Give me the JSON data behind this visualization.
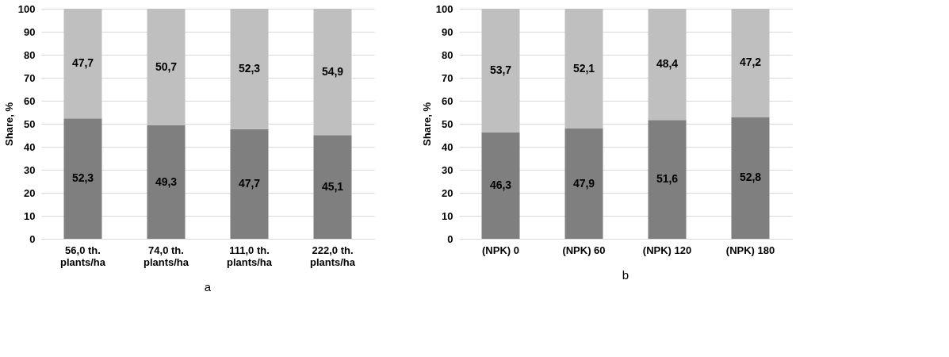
{
  "chart_data": [
    {
      "type": "bar",
      "stacked": true,
      "ylabel": "Share, %",
      "categories": [
        "56,0 th.\nplants/ha",
        "74,0 th.\nplants/ha",
        "111,0 th.\nplants/ha",
        "222,0 th.\nplants/ha"
      ],
      "ylim": [
        0,
        100
      ],
      "yticks": [
        0,
        10,
        20,
        30,
        40,
        50,
        60,
        70,
        80,
        90,
        100
      ],
      "grid": "y",
      "legend": false,
      "annotations": [
        "a"
      ],
      "series": [
        {
          "color": "#7f7f7f",
          "values": [
            52.3,
            49.3,
            47.7,
            45.1
          ],
          "value_labels": [
            "52,3",
            "49,3",
            "47,7",
            "45,1"
          ]
        },
        {
          "color": "#bfbfbf",
          "values": [
            47.7,
            50.7,
            52.3,
            54.9
          ],
          "value_labels": [
            "47,7",
            "50,7",
            "52,3",
            "54,9"
          ]
        }
      ]
    },
    {
      "type": "bar",
      "stacked": true,
      "ylabel": "Share, %",
      "categories": [
        "(NPK) 0",
        "(NPK) 60",
        "(NPK) 120",
        "(NPK) 180"
      ],
      "ylim": [
        0,
        100
      ],
      "yticks": [
        0,
        10,
        20,
        30,
        40,
        50,
        60,
        70,
        80,
        90,
        100
      ],
      "grid": "y",
      "legend": false,
      "annotations": [
        "b"
      ],
      "series": [
        {
          "color": "#7f7f7f",
          "values": [
            46.3,
            47.9,
            51.6,
            52.8
          ],
          "value_labels": [
            "46,3",
            "47,9",
            "51,6",
            "52,8"
          ]
        },
        {
          "color": "#bfbfbf",
          "values": [
            53.7,
            52.1,
            48.4,
            47.2
          ],
          "value_labels": [
            "53,7",
            "52,1",
            "48,4",
            "47,2"
          ]
        }
      ]
    }
  ]
}
